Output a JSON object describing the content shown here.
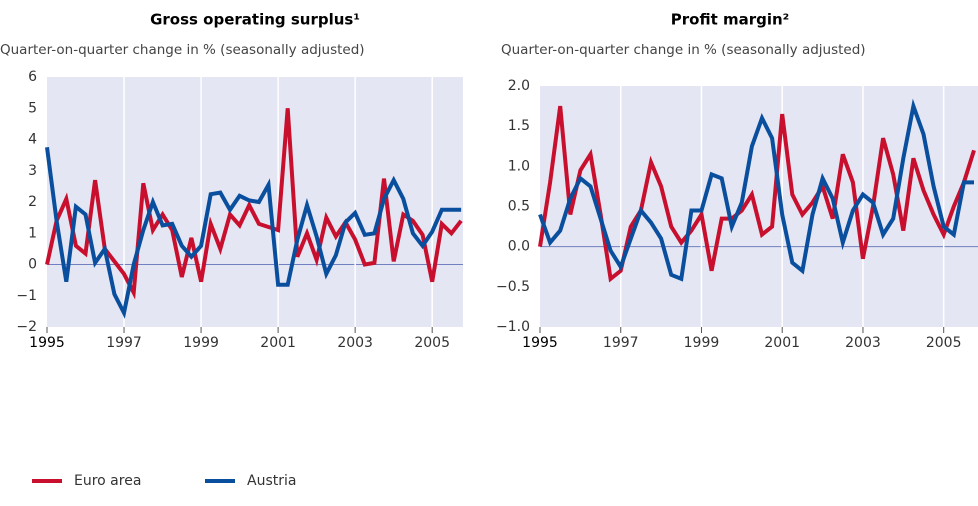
{
  "chart_data": [
    {
      "type": "line",
      "title": "Gross operating surplus¹",
      "subtitle": "Quarter-on-quarter change in % (seasonally adjusted)",
      "x": [
        1995,
        1995.25,
        1995.5,
        1995.75,
        1996,
        1996.25,
        1996.5,
        1996.75,
        1997,
        1997.25,
        1997.5,
        1997.75,
        1998,
        1998.25,
        1998.5,
        1998.75,
        1999,
        1999.25,
        1999.5,
        1999.75,
        2000,
        2000.25,
        2000.5,
        2000.75,
        2001,
        2001.25,
        2001.5,
        2001.75,
        2002,
        2002.25,
        2002.5,
        2002.75,
        2003,
        2003.25,
        2003.5,
        2003.75,
        2004,
        2004.25,
        2004.5,
        2004.75,
        2005,
        2005.25,
        2005.5,
        2005.75
      ],
      "series": [
        {
          "name": "Euro area",
          "color": "#c8102e",
          "values": [
            0,
            1.4,
            2.1,
            0.6,
            0.35,
            2.7,
            0.5,
            0.1,
            -0.3,
            -0.9,
            2.6,
            1.1,
            1.6,
            1.1,
            -0.4,
            0.85,
            -0.55,
            1.3,
            0.5,
            1.6,
            1.25,
            1.9,
            1.3,
            1.2,
            1.1,
            5.0,
            0.25,
            1.0,
            0.15,
            1.5,
            0.9,
            1.35,
            0.8,
            0.0,
            0.05,
            2.75,
            0.1,
            1.6,
            1.4,
            0.95,
            -0.55,
            1.3,
            1.0,
            1.4
          ]
        },
        {
          "name": "Austria",
          "color": "#0a4f9e",
          "values": [
            3.75,
            1.4,
            -0.55,
            1.85,
            1.6,
            0.05,
            0.5,
            -0.95,
            -1.55,
            0.0,
            1.1,
            2.0,
            1.25,
            1.3,
            0.6,
            0.25,
            0.6,
            2.25,
            2.3,
            1.75,
            2.2,
            2.05,
            2.0,
            2.55,
            -0.65,
            -0.65,
            0.8,
            1.9,
            0.9,
            -0.3,
            0.3,
            1.35,
            1.65,
            0.95,
            1.0,
            2.1,
            2.7,
            2.1,
            1.0,
            0.6,
            1.05,
            1.75,
            1.75,
            1.75
          ]
        }
      ],
      "xlim": [
        1995,
        2005.8
      ],
      "xticks": [
        1995,
        1997,
        1999,
        2001,
        2003,
        2005
      ],
      "ylim": [
        -2,
        6
      ],
      "yticks": [
        {
          "value": -2,
          "label": "−2"
        },
        {
          "value": -1,
          "label": "−1"
        },
        0,
        1,
        2,
        3,
        4,
        5,
        6
      ],
      "grid": true
    },
    {
      "type": "line",
      "title": "Profit margin²",
      "subtitle": "Quarter-on-quarter change in % (seasonally adjusted)",
      "x": [
        1995,
        1995.25,
        1995.5,
        1995.75,
        1996,
        1996.25,
        1996.5,
        1996.75,
        1997,
        1997.25,
        1997.5,
        1997.75,
        1998,
        1998.25,
        1998.5,
        1998.75,
        1999,
        1999.25,
        1999.5,
        1999.75,
        2000,
        2000.25,
        2000.5,
        2000.75,
        2001,
        2001.25,
        2001.5,
        2001.75,
        2002,
        2002.25,
        2002.5,
        2002.75,
        2003,
        2003.25,
        2003.5,
        2003.75,
        2004,
        2004.25,
        2004.5,
        2004.75,
        2005,
        2005.25,
        2005.5,
        2005.75
      ],
      "series": [
        {
          "color": "#c8102e",
          "values": [
            0,
            0.8,
            1.75,
            0.4,
            0.95,
            1.15,
            0.4,
            -0.4,
            -0.3,
            0.25,
            0.45,
            1.05,
            0.75,
            0.25,
            0.05,
            0.2,
            0.4,
            -0.3,
            0.35,
            0.35,
            0.45,
            0.65,
            0.15,
            0.25,
            1.65,
            0.65,
            0.4,
            0.55,
            0.75,
            0.35,
            1.15,
            0.8,
            -0.15,
            0.5,
            1.35,
            0.9,
            0.2,
            1.1,
            0.7,
            0.4,
            0.15,
            0.5,
            0.8,
            1.2
          ]
        },
        {
          "color": "#0a4f9e",
          "values": [
            0.4,
            0.05,
            0.2,
            0.6,
            0.85,
            0.75,
            0.35,
            -0.05,
            -0.25,
            0.1,
            0.45,
            0.3,
            0.1,
            -0.35,
            -0.4,
            0.45,
            0.45,
            0.9,
            0.85,
            0.25,
            0.55,
            1.25,
            1.6,
            1.35,
            0.4,
            -0.2,
            -0.3,
            0.4,
            0.85,
            0.6,
            0.05,
            0.45,
            0.65,
            0.55,
            0.15,
            0.35,
            1.1,
            1.75,
            1.4,
            0.75,
            0.25,
            0.15,
            0.8,
            0.8
          ]
        }
      ],
      "xlim": [
        1995,
        2005.85
      ],
      "xticks": [
        1995,
        1997,
        1999,
        2001,
        2003,
        2005
      ],
      "ylim": [
        -1,
        2
      ],
      "yticks": [
        {
          "value": -1,
          "label": "−1.0"
        },
        {
          "value": -0.5,
          "label": "−0.5"
        },
        {
          "value": 0,
          "label": "0.0"
        },
        {
          "value": 0.5,
          "label": "0.5"
        },
        {
          "value": 1,
          "label": "1.0"
        },
        {
          "value": 1.5,
          "label": "1.5"
        },
        {
          "value": 2,
          "label": "2.0"
        }
      ],
      "grid": true
    }
  ]
}
